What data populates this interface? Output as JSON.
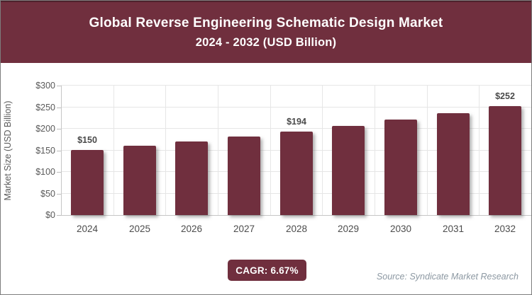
{
  "header": {
    "title_line1": "Global Reverse Engineering Schematic Design Market",
    "title_line2": "2024 - 2032 (USD Billion)"
  },
  "chart_data": {
    "type": "bar",
    "title": "Global Reverse Engineering Schematic Design Market 2024 - 2032 (USD Billion)",
    "categories": [
      "2024",
      "2025",
      "2026",
      "2027",
      "2028",
      "2029",
      "2030",
      "2031",
      "2032"
    ],
    "values": [
      150,
      160,
      171,
      182,
      194,
      207,
      221,
      236,
      252
    ],
    "bar_labels": [
      "$150",
      null,
      null,
      null,
      "$194",
      null,
      null,
      null,
      "$252"
    ],
    "xlabel": "",
    "ylabel": "Market Size (USD Billion)",
    "ylim": [
      0,
      300
    ],
    "yticks": [
      {
        "value": 0,
        "label": "$0"
      },
      {
        "value": 50,
        "label": "$50"
      },
      {
        "value": 100,
        "label": "$100"
      },
      {
        "value": 150,
        "label": "$150"
      },
      {
        "value": 200,
        "label": "$200"
      },
      {
        "value": 250,
        "label": "$250"
      },
      {
        "value": 300,
        "label": "$300"
      }
    ],
    "grid": true,
    "legend": "none",
    "bar_color": "#702F3E"
  },
  "footer": {
    "cagr_label": "CAGR: 6.67%",
    "source": "Source: Syndicate Market Research"
  },
  "colors": {
    "maroon": "#702F3E",
    "gridline": "#e6e6e6",
    "axis_line": "#c6c6c6",
    "tick_text": "#595959",
    "source_text": "#8C98A2"
  }
}
